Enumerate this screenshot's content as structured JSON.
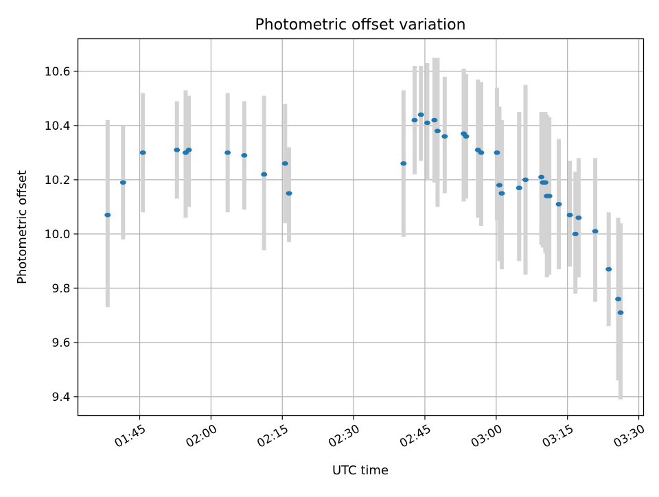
{
  "chart_data": {
    "type": "scatter",
    "title": "Photometric offset variation",
    "xlabel": "UTC time",
    "ylabel": "Photometric offset",
    "x_axis_type": "time",
    "xlim": [
      "01:32",
      "03:31"
    ],
    "ylim": [
      9.33,
      10.72
    ],
    "x_ticks": [
      "01:45",
      "02:00",
      "02:15",
      "02:30",
      "02:45",
      "03:00",
      "03:15",
      "03:30"
    ],
    "y_ticks": [
      "9.4",
      "9.6",
      "9.8",
      "10.0",
      "10.2",
      "10.4",
      "10.6"
    ],
    "grid": true,
    "colors": {
      "marker": "#1f77b4",
      "errorbar": "#d3d3d3",
      "grid": "#b0b0b0"
    },
    "points": [
      {
        "t": "01:38:15",
        "y": 10.07,
        "lo": 9.73,
        "hi": 10.42
      },
      {
        "t": "01:41:30",
        "y": 10.19,
        "lo": 9.98,
        "hi": 10.4
      },
      {
        "t": "01:45:40",
        "y": 10.3,
        "lo": 10.08,
        "hi": 10.52
      },
      {
        "t": "01:52:50",
        "y": 10.31,
        "lo": 10.13,
        "hi": 10.49
      },
      {
        "t": "01:54:40",
        "y": 10.3,
        "lo": 10.06,
        "hi": 10.53
      },
      {
        "t": "01:55:20",
        "y": 10.31,
        "lo": 10.1,
        "hi": 10.51
      },
      {
        "t": "02:03:30",
        "y": 10.3,
        "lo": 10.08,
        "hi": 10.52
      },
      {
        "t": "02:07:00",
        "y": 10.29,
        "lo": 10.09,
        "hi": 10.49
      },
      {
        "t": "02:11:10",
        "y": 10.22,
        "lo": 9.94,
        "hi": 10.51
      },
      {
        "t": "02:15:35",
        "y": 10.26,
        "lo": 10.04,
        "hi": 10.48
      },
      {
        "t": "02:16:25",
        "y": 10.15,
        "lo": 9.97,
        "hi": 10.32
      },
      {
        "t": "02:40:30",
        "y": 10.26,
        "lo": 9.99,
        "hi": 10.53
      },
      {
        "t": "02:42:50",
        "y": 10.42,
        "lo": 10.22,
        "hi": 10.62
      },
      {
        "t": "02:44:10",
        "y": 10.44,
        "lo": 10.27,
        "hi": 10.62
      },
      {
        "t": "02:45:30",
        "y": 10.41,
        "lo": 10.2,
        "hi": 10.63
      },
      {
        "t": "02:47:00",
        "y": 10.42,
        "lo": 10.19,
        "hi": 10.65
      },
      {
        "t": "02:47:40",
        "y": 10.38,
        "lo": 10.1,
        "hi": 10.65
      },
      {
        "t": "02:49:10",
        "y": 10.36,
        "lo": 10.15,
        "hi": 10.58
      },
      {
        "t": "02:53:10",
        "y": 10.37,
        "lo": 10.12,
        "hi": 10.61
      },
      {
        "t": "02:53:40",
        "y": 10.36,
        "lo": 10.13,
        "hi": 10.59
      },
      {
        "t": "02:56:10",
        "y": 10.31,
        "lo": 10.06,
        "hi": 10.57
      },
      {
        "t": "02:56:50",
        "y": 10.3,
        "lo": 10.03,
        "hi": 10.56
      },
      {
        "t": "03:00:10",
        "y": 10.3,
        "lo": 10.05,
        "hi": 10.54
      },
      {
        "t": "03:00:40",
        "y": 10.18,
        "lo": 9.9,
        "hi": 10.47
      },
      {
        "t": "03:01:10",
        "y": 10.15,
        "lo": 9.87,
        "hi": 10.42
      },
      {
        "t": "03:04:50",
        "y": 10.17,
        "lo": 9.9,
        "hi": 10.45
      },
      {
        "t": "03:06:10",
        "y": 10.2,
        "lo": 9.85,
        "hi": 10.55
      },
      {
        "t": "03:09:30",
        "y": 10.21,
        "lo": 9.96,
        "hi": 10.45
      },
      {
        "t": "03:09:50",
        "y": 10.19,
        "lo": 9.95,
        "hi": 10.44
      },
      {
        "t": "03:10:20",
        "y": 10.19,
        "lo": 9.93,
        "hi": 10.45
      },
      {
        "t": "03:10:40",
        "y": 10.14,
        "lo": 9.84,
        "hi": 10.44
      },
      {
        "t": "03:11:10",
        "y": 10.14,
        "lo": 9.85,
        "hi": 10.43
      },
      {
        "t": "03:13:10",
        "y": 10.11,
        "lo": 9.87,
        "hi": 10.35
      },
      {
        "t": "03:15:30",
        "y": 10.07,
        "lo": 9.88,
        "hi": 10.27
      },
      {
        "t": "03:16:40",
        "y": 10.0,
        "lo": 9.78,
        "hi": 10.23
      },
      {
        "t": "03:17:20",
        "y": 10.06,
        "lo": 9.84,
        "hi": 10.28
      },
      {
        "t": "03:20:50",
        "y": 10.01,
        "lo": 9.75,
        "hi": 10.28
      },
      {
        "t": "03:23:40",
        "y": 9.87,
        "lo": 9.66,
        "hi": 10.08
      },
      {
        "t": "03:25:40",
        "y": 9.76,
        "lo": 9.46,
        "hi": 10.06
      },
      {
        "t": "03:26:10",
        "y": 9.71,
        "lo": 9.39,
        "hi": 10.04
      }
    ]
  }
}
